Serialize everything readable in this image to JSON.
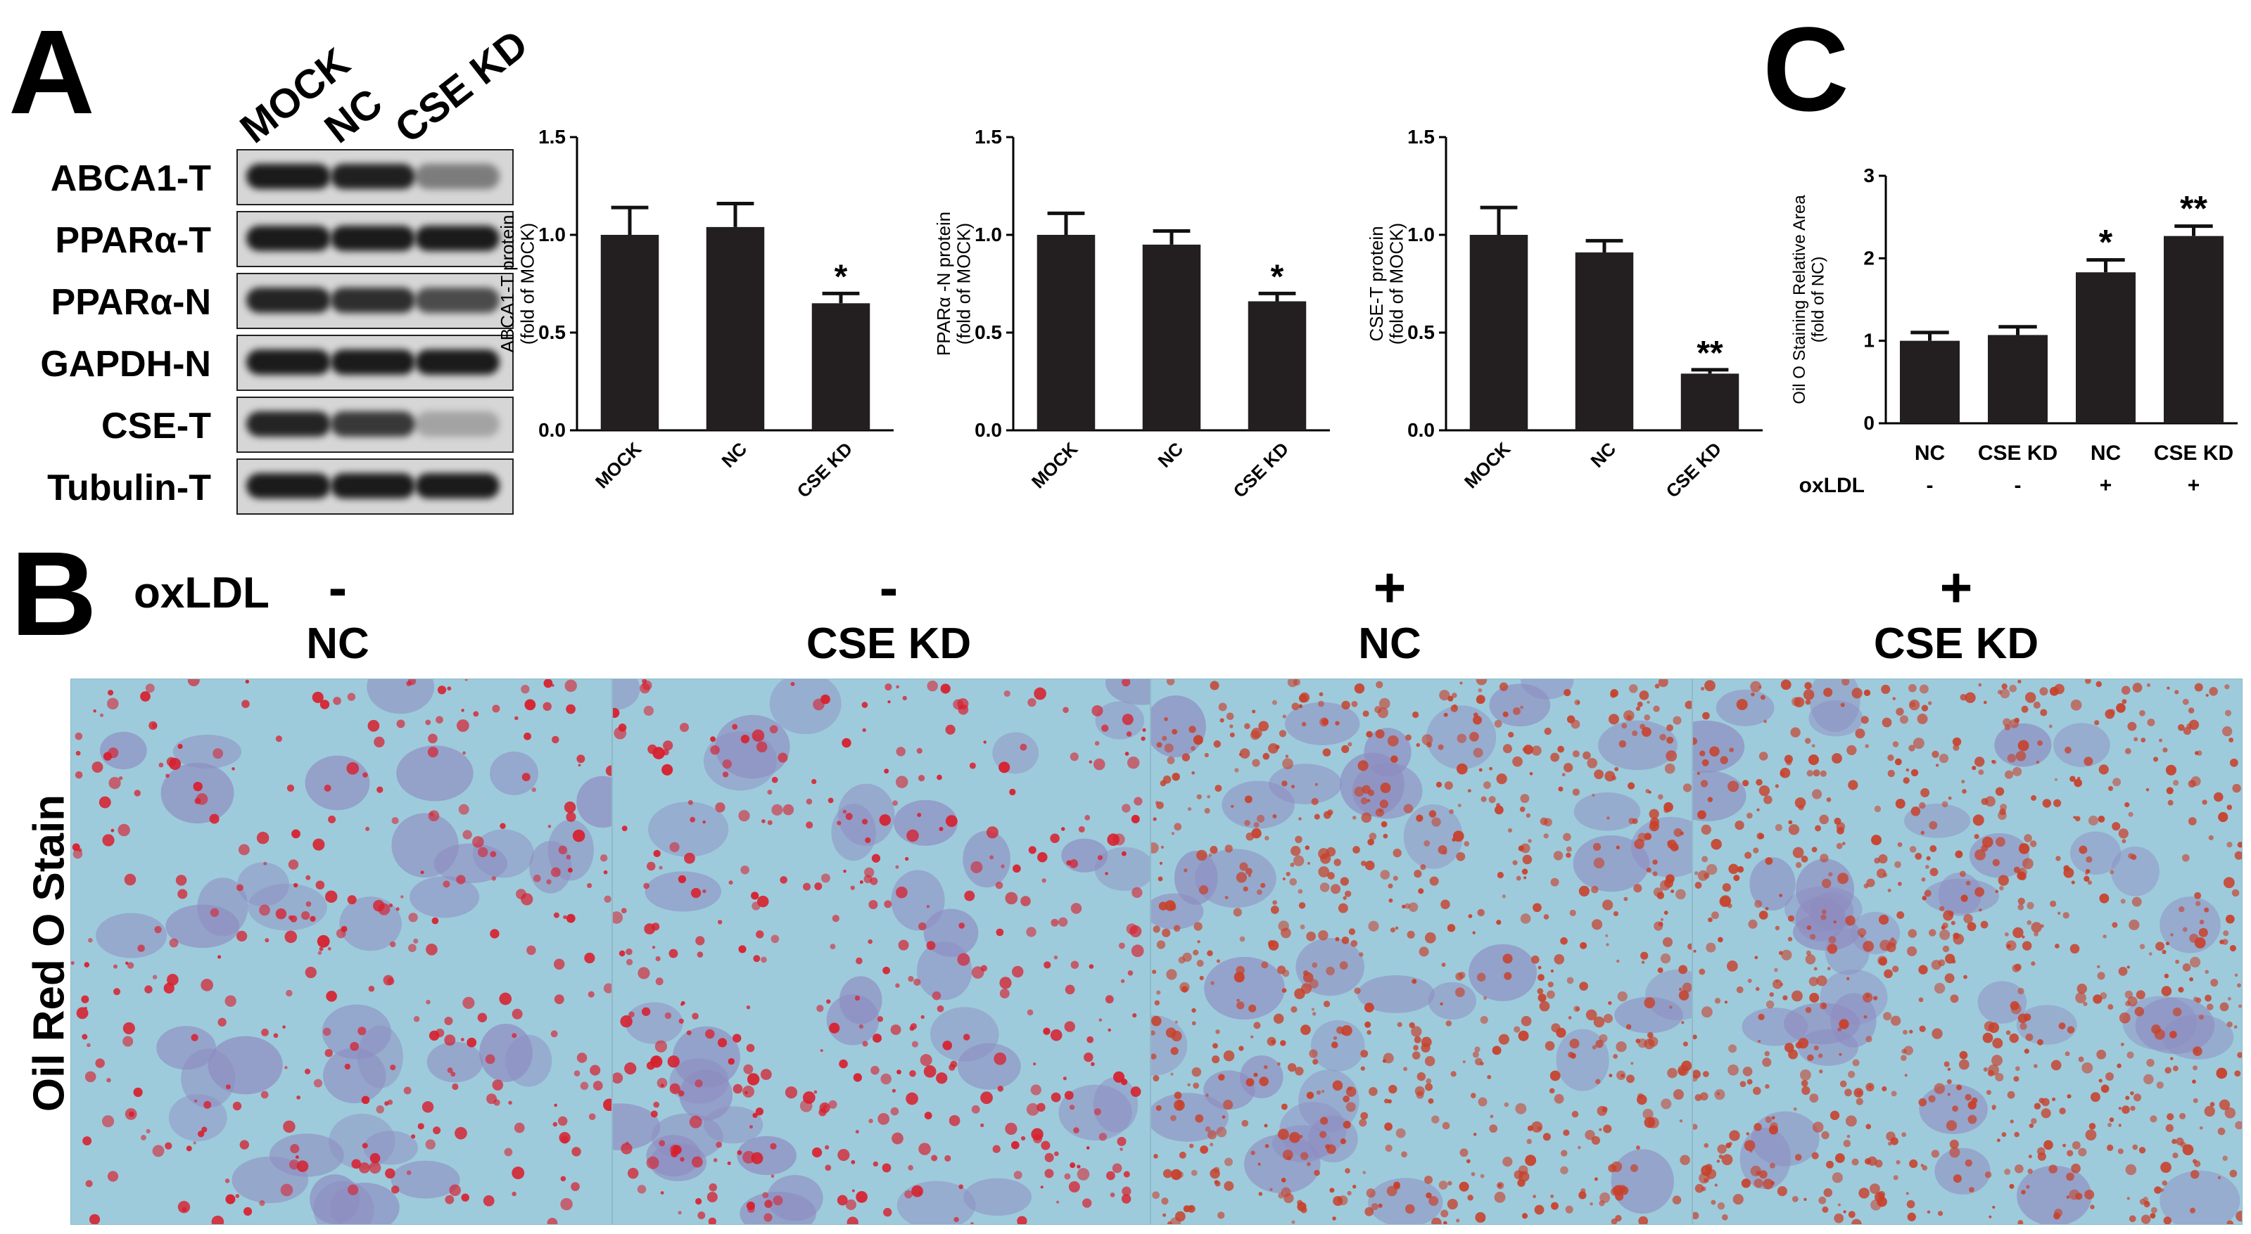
{
  "panel_a": {
    "letter": "A",
    "lanes": [
      "MOCK",
      "NC",
      "CSE KD"
    ],
    "blot_labels": [
      "ABCA1-T",
      "PPARα-T",
      "PPARα-N",
      "GAPDH-N",
      "CSE-T",
      "Tubulin-T"
    ],
    "band_intensity": [
      [
        0.95,
        0.92,
        0.45
      ],
      [
        0.95,
        0.95,
        0.95
      ],
      [
        0.9,
        0.85,
        0.7
      ],
      [
        0.95,
        0.95,
        0.95
      ],
      [
        0.9,
        0.8,
        0.25
      ],
      [
        0.95,
        0.95,
        0.95
      ]
    ]
  },
  "panel_c": {
    "letter": "C"
  },
  "panel_b": {
    "letter": "B",
    "oxldl_label": "oxLDL",
    "y_label": "Oil Red O Stain",
    "columns": [
      {
        "sign": "-",
        "group": "NC",
        "lipid_density": 0.35,
        "lipid_color": "#d81e2c"
      },
      {
        "sign": "-",
        "group": "CSE KD",
        "lipid_density": 0.45,
        "lipid_color": "#d81e2c"
      },
      {
        "sign": "+",
        "group": "NC",
        "lipid_density": 0.85,
        "lipid_color": "#c8402a"
      },
      {
        "sign": "+",
        "group": "CSE KD",
        "lipid_density": 0.9,
        "lipid_color": "#c8402a"
      }
    ]
  },
  "chart_data": [
    {
      "type": "bar",
      "categories": [
        "MOCK",
        "NC",
        "CSE KD"
      ],
      "values": [
        1.0,
        1.04,
        0.65
      ],
      "errors": [
        0.14,
        0.12,
        0.05
      ],
      "significance": [
        "",
        "",
        "*"
      ],
      "ylabel": "ABCA1-T protein\n(fold of MOCK)",
      "ylim": [
        0,
        1.5
      ],
      "yticks": [
        "0.0",
        "0.5",
        "1.0",
        "1.5"
      ]
    },
    {
      "type": "bar",
      "categories": [
        "MOCK",
        "NC",
        "CSE KD"
      ],
      "values": [
        1.0,
        0.95,
        0.66
      ],
      "errors": [
        0.11,
        0.07,
        0.04
      ],
      "significance": [
        "",
        "",
        "*"
      ],
      "ylabel": "PPARα -N protein\n(fold of MOCK)",
      "ylim": [
        0,
        1.5
      ],
      "yticks": [
        "0.0",
        "0.5",
        "1.0",
        "1.5"
      ]
    },
    {
      "type": "bar",
      "categories": [
        "MOCK",
        "NC",
        "CSE KD"
      ],
      "values": [
        1.0,
        0.91,
        0.29
      ],
      "errors": [
        0.14,
        0.06,
        0.02
      ],
      "significance": [
        "",
        "",
        "**"
      ],
      "ylabel": "CSE-T protein\n(fold of MOCK)",
      "ylim": [
        0,
        1.5
      ],
      "yticks": [
        "0.0",
        "0.5",
        "1.0",
        "1.5"
      ]
    },
    {
      "type": "bar",
      "categories": [
        "NC",
        "CSE KD",
        "NC",
        "CSE KD"
      ],
      "category_row2_label": "oxLDL",
      "category_row2": [
        "-",
        "-",
        "+",
        "+"
      ],
      "values": [
        1.0,
        1.07,
        1.83,
        2.27
      ],
      "errors": [
        0.1,
        0.1,
        0.15,
        0.12
      ],
      "significance": [
        "",
        "",
        "*",
        "**"
      ],
      "ylabel": "Oil O Staining Relative Area\n(fold of NC)",
      "ylim": [
        0,
        3
      ],
      "yticks": [
        "0",
        "1",
        "2",
        "3"
      ]
    }
  ]
}
